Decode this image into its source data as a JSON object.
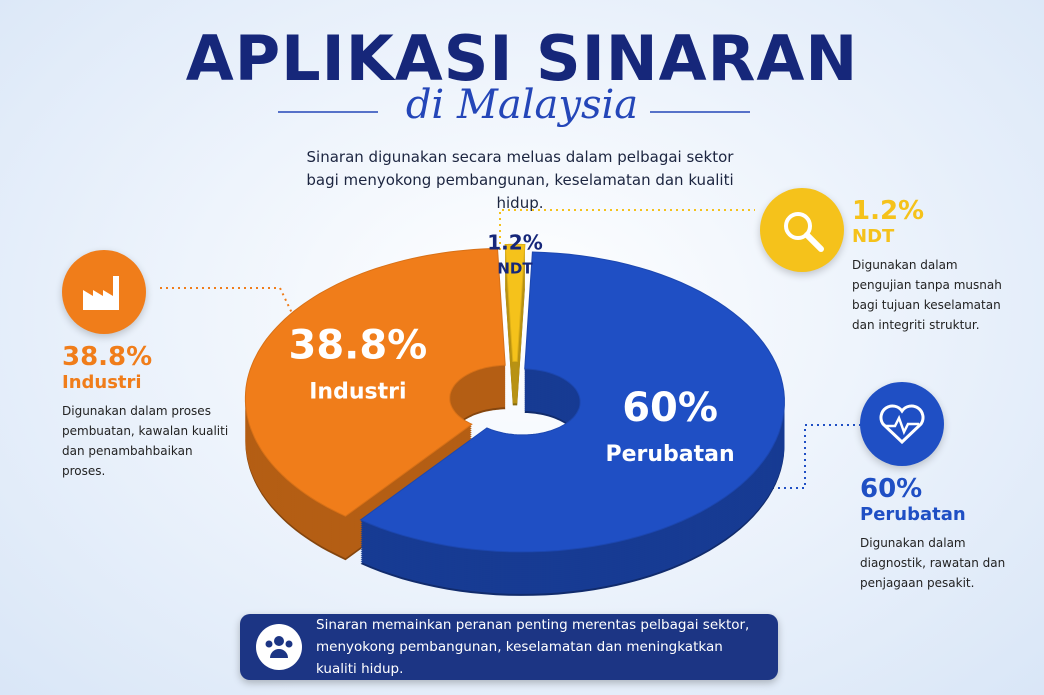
{
  "chart_data": {
    "type": "pie",
    "title": "APLIKASI SINARAN",
    "subtitle": "di Malaysia",
    "description": "Sinaran digunakan secara meluas dalam pelbagai sektor bagi menyokong pembangunan, keselamatan dan kualiti hidup.",
    "categories": [
      "Industri",
      "NDT",
      "Perubatan"
    ],
    "values": [
      38.8,
      1.2,
      60
    ],
    "value_labels": [
      "38.8%",
      "1.2%",
      "60%"
    ],
    "colors": [
      "#f07d1a",
      "#f5c21b",
      "#1f4fc4"
    ],
    "descriptions": [
      "Digunakan dalam proses pembuatan, kawalan kualiti dan penambahbaikan proses.",
      "Digunakan dalam pengujian tanpa musnah bagi tujuan keselamatan dan integriti struktur.",
      "Digunakan dalam diagnostik, rawatan dan penjagaan pesakit."
    ],
    "note": "Sinaran memainkan peranan penting merentas pelbagai sektor, menyokong pembangunan, keselamatan dan meningkatkan kualiti hidup."
  }
}
